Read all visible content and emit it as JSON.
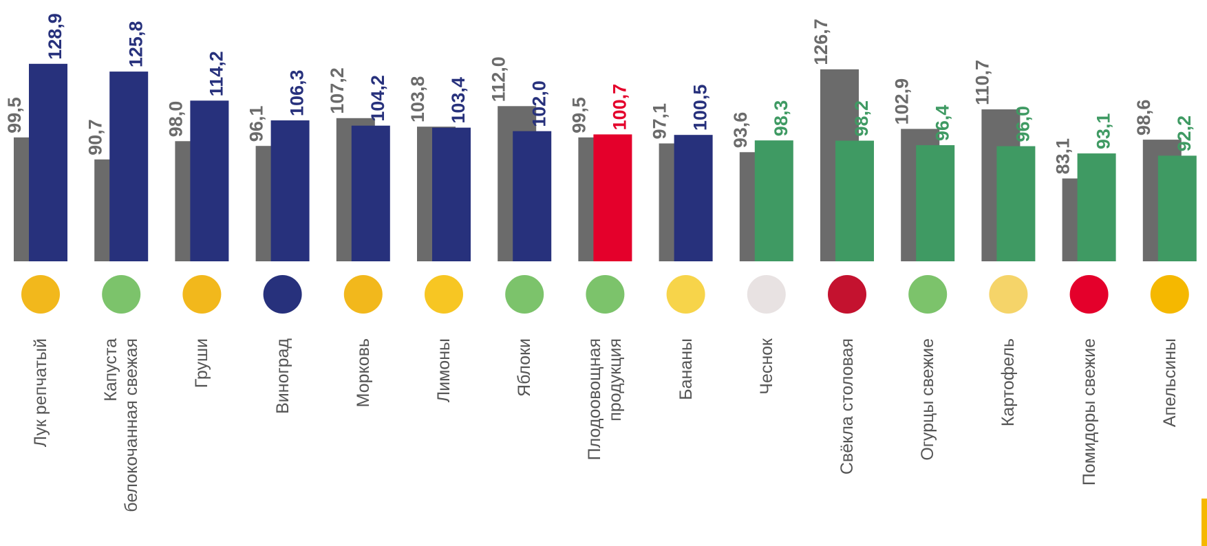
{
  "chart_data": {
    "type": "bar",
    "categories": [
      "Лук репчатый",
      "Капуста\nбелокочанная свежая",
      "Груши",
      "Виноград",
      "Морковь",
      "Лимоны",
      "Яблоки",
      "Плодоовощная\nпродукция",
      "Бананы",
      "Чеснок",
      "Свёкла столовая",
      "Огурцы свежие",
      "Картофель",
      "Помидоры свежие",
      "Апельсины"
    ],
    "series": [
      {
        "color": "#6b6b6b",
        "values": [
          99.5,
          90.7,
          98.0,
          96.1,
          107.2,
          103.8,
          112.0,
          99.5,
          97.1,
          93.6,
          126.7,
          102.9,
          110.7,
          83.1,
          98.6
        ],
        "value_labels": [
          "99,5",
          "90,7",
          "98,0",
          "96,1",
          "107,2",
          "103,8",
          "112,0",
          "99,5",
          "97,1",
          "93,6",
          "126,7",
          "102,9",
          "110,7",
          "83,1",
          "98,6"
        ]
      },
      {
        "colors": [
          "#27317c",
          "#27317c",
          "#27317c",
          "#27317c",
          "#27317c",
          "#27317c",
          "#27317c",
          "#e4002b",
          "#27317c",
          "#3f9a63",
          "#3f9a63",
          "#3f9a63",
          "#3f9a63",
          "#3f9a63",
          "#3f9a63"
        ],
        "values": [
          128.9,
          125.8,
          114.2,
          106.3,
          104.2,
          103.4,
          102.0,
          100.7,
          100.5,
          98.3,
          98.2,
          96.4,
          96.0,
          93.1,
          92.2
        ],
        "value_labels": [
          "128,9",
          "125,8",
          "114,2",
          "106,3",
          "104,2",
          "103,4",
          "102,0",
          "100,7",
          "100,5",
          "98,3",
          "98,2",
          "96,4",
          "96,0",
          "93,1",
          "92,2"
        ]
      }
    ],
    "ylim": [
      50,
      150
    ]
  }
}
